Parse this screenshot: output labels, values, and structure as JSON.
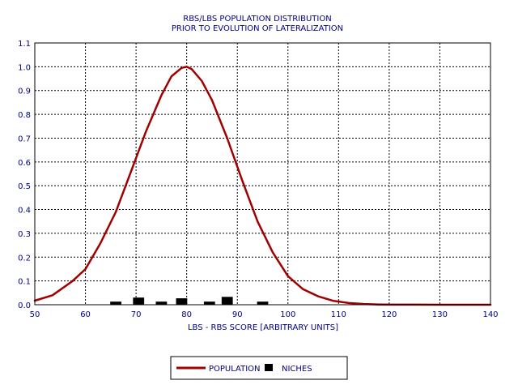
{
  "chart_data": {
    "type": "line",
    "title": [
      "RBS/LBS POPULATION DISTRIBUTION",
      "PRIOR TO EVOLUTION OF LATERALIZATION"
    ],
    "xlabel": "LBS - RBS SCORE [ARBITRARY UNITS]",
    "ylabel": "",
    "xlim": [
      50,
      140
    ],
    "ylim": [
      0,
      1.1
    ],
    "x_ticks": [
      50,
      60,
      70,
      80,
      90,
      100,
      110,
      120,
      130,
      140
    ],
    "y_ticks": [
      0.0,
      0.1,
      0.2,
      0.3,
      0.4,
      0.5,
      0.6,
      0.7,
      0.8,
      0.9,
      1.0,
      1.1
    ],
    "x_tick_labels": [
      "50",
      "60",
      "70",
      "80",
      "90",
      "100",
      "110",
      "120",
      "130",
      "140"
    ],
    "y_tick_labels": [
      "0.0",
      "0.1",
      "0.2",
      "0.3",
      "0.4",
      "0.5",
      "0.6",
      "0.7",
      "0.8",
      "0.9",
      "1.0",
      "1.1"
    ],
    "grid": true,
    "legend_position": "bottom-center",
    "series": [
      {
        "name": "POPULATION",
        "type": "line",
        "color": "#a00000",
        "x": [
          50,
          53.5,
          57.5,
          60,
          63,
          66,
          69,
          72,
          75,
          77,
          79,
          80,
          81,
          83,
          85,
          88,
          91,
          94,
          97,
          100,
          103,
          106,
          109,
          112,
          115,
          118,
          121,
          125,
          130,
          135,
          140
        ],
        "y": [
          0.017,
          0.04,
          0.1,
          0.15,
          0.26,
          0.39,
          0.56,
          0.73,
          0.88,
          0.96,
          0.995,
          1.0,
          0.99,
          0.94,
          0.86,
          0.7,
          0.52,
          0.35,
          0.22,
          0.12,
          0.065,
          0.035,
          0.016,
          0.007,
          0.003,
          0.001,
          0.0005,
          0.0002,
          0.0,
          0.0,
          0.0
        ]
      },
      {
        "name": "NICHES",
        "type": "bar",
        "color": "#000000",
        "x": [
          66,
          70.5,
          75,
          79,
          84.5,
          88,
          95
        ],
        "y": [
          0.013,
          0.03,
          0.013,
          0.027,
          0.013,
          0.033,
          0.013
        ]
      }
    ]
  }
}
